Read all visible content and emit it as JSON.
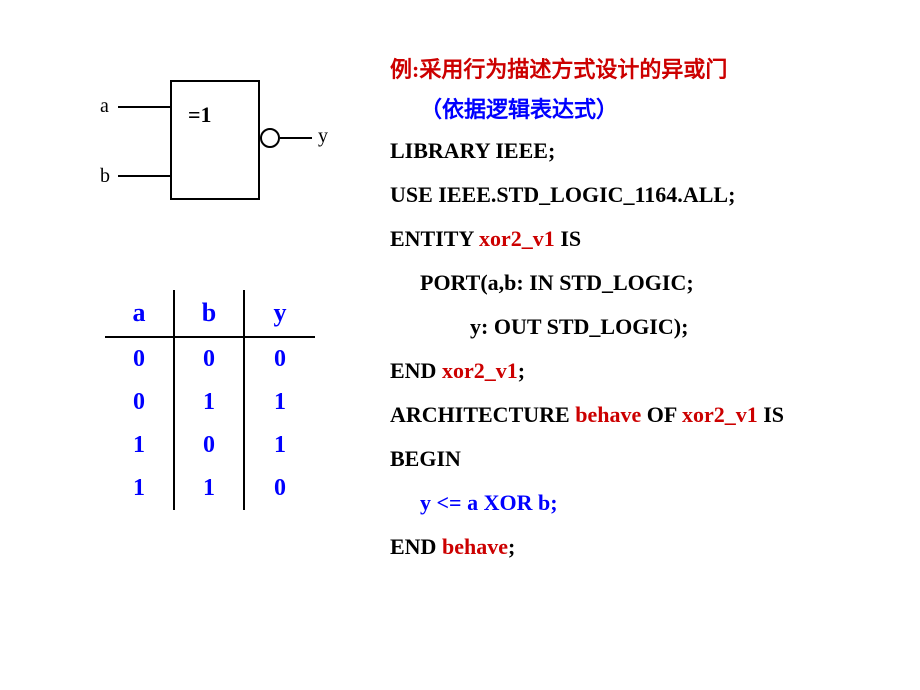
{
  "diagram": {
    "input_a": "a",
    "input_b": "b",
    "output": "y",
    "gate_label": "=1"
  },
  "truth_table": {
    "headers": {
      "col1": "a",
      "col2": "b",
      "col3": "y"
    },
    "rows": [
      {
        "a": "0",
        "b": "0",
        "y": "0"
      },
      {
        "a": "0",
        "b": "1",
        "y": "1"
      },
      {
        "a": "1",
        "b": "0",
        "y": "1"
      },
      {
        "a": "1",
        "b": "1",
        "y": "0"
      }
    ],
    "header_color": "#0000ff",
    "body_color": "#0000ff"
  },
  "title": {
    "prefix": "例:",
    "text1": "采用行为描述方式设计的异或门",
    "text2": "（依据逻辑表达式）"
  },
  "code": {
    "line1_kw1": "LIBRARY",
    "line1_rest": " IEEE;",
    "line2_kw1": "USE",
    "line2_rest": " IEEE.STD_LOGIC_1164.",
    "line2_kw2": "ALL",
    "line2_semi": ";",
    "line3_kw1": "ENTITY ",
    "line3_name": "xor2_v1",
    "line3_kw2": " IS",
    "line4_kw1": "PORT",
    "line4_rest": "(a,b: ",
    "line4_kw2": "IN",
    "line4_rest2": " STD_LOGIC;",
    "line5_rest": "y: ",
    "line5_kw1": "OUT",
    "line5_rest2": " STD_LOGIC);",
    "line6_kw1": "END ",
    "line6_name": "xor2_v1",
    "line6_semi": ";",
    "line7_kw1": "ARCHITECTURE ",
    "line7_name1": "behave",
    "line7_kw2": " OF ",
    "line7_name2": "xor2_v1",
    "line7_kw3": " IS",
    "line8_kw1": "BEGIN",
    "line9": "y <= a XOR b;",
    "line10_kw1": "END ",
    "line10_name": "behave",
    "line10_semi": ";"
  },
  "colors": {
    "keyword": "#000000",
    "identifier": "#cc0000",
    "comment_blue": "#0000ff"
  }
}
